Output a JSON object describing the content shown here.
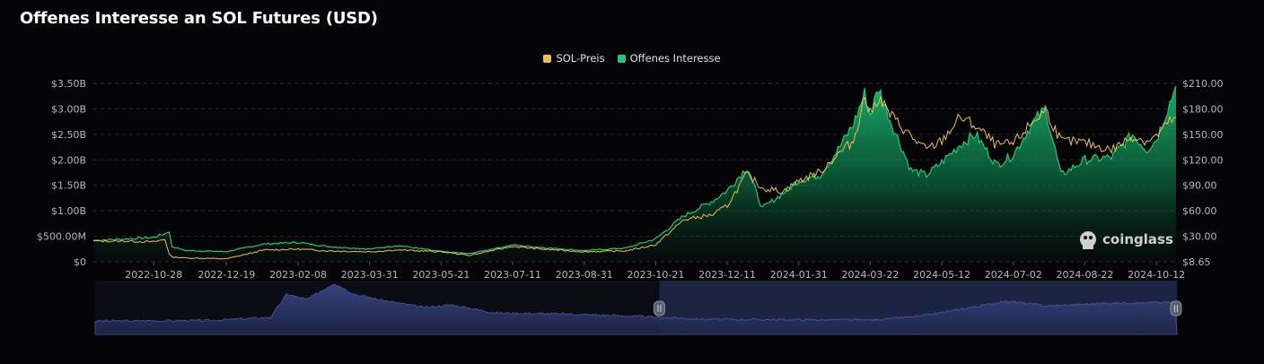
{
  "title": "Offenes Interesse an SOL Futures (USD)",
  "legend": {
    "price_label": "SOL-Preis",
    "oi_label": "Offenes Interesse"
  },
  "watermark": "coinglass",
  "colors": {
    "price": "#f0c04a",
    "oi": "#1ec97a",
    "background": "#050508",
    "navigator": "#2c3768"
  },
  "chart_data": {
    "type": "area",
    "x_label_dates": [
      "2022-10-28",
      "2022-12-19",
      "2023-02-08",
      "2023-03-31",
      "2023-05-21",
      "2023-07-11",
      "2023-08-31",
      "2023-10-21",
      "2023-12-11",
      "2024-01-31",
      "2024-03-22",
      "2024-05-12",
      "2024-07-02",
      "2024-08-22",
      "2024-10-12"
    ],
    "y_left": {
      "ticks": [
        "$0",
        "$500.00M",
        "$1.00B",
        "$1.50B",
        "$2.00B",
        "$2.50B",
        "$3.00B",
        "$3.50B"
      ],
      "range": [
        0,
        3.5
      ],
      "unit": "billion USD"
    },
    "y_right": {
      "ticks": [
        "$8.65",
        "$30.00",
        "$60.00",
        "$90.00",
        "$120.00",
        "$150.00",
        "$180.00",
        "$210.00"
      ],
      "range": [
        8.65,
        210
      ]
    },
    "series": [
      {
        "name": "Offenes Interesse",
        "axis": "left",
        "points": [
          [
            "2022-09-15",
            0.42
          ],
          [
            "2022-10-10",
            0.45
          ],
          [
            "2022-10-28",
            0.48
          ],
          [
            "2022-11-05",
            0.55
          ],
          [
            "2022-11-08",
            0.6
          ],
          [
            "2022-11-10",
            0.3
          ],
          [
            "2022-11-20",
            0.22
          ],
          [
            "2022-12-19",
            0.2
          ],
          [
            "2023-01-15",
            0.35
          ],
          [
            "2023-02-08",
            0.38
          ],
          [
            "2023-03-01",
            0.3
          ],
          [
            "2023-03-31",
            0.25
          ],
          [
            "2023-04-20",
            0.32
          ],
          [
            "2023-05-21",
            0.2
          ],
          [
            "2023-06-10",
            0.16
          ],
          [
            "2023-07-11",
            0.33
          ],
          [
            "2023-08-01",
            0.28
          ],
          [
            "2023-08-31",
            0.22
          ],
          [
            "2023-09-30",
            0.27
          ],
          [
            "2023-10-21",
            0.45
          ],
          [
            "2023-11-10",
            0.9
          ],
          [
            "2023-12-01",
            1.2
          ],
          [
            "2023-12-11",
            1.4
          ],
          [
            "2023-12-25",
            1.85
          ],
          [
            "2024-01-05",
            1.05
          ],
          [
            "2024-01-20",
            1.35
          ],
          [
            "2024-01-31",
            1.6
          ],
          [
            "2024-02-15",
            1.7
          ],
          [
            "2024-02-28",
            2.2
          ],
          [
            "2024-03-10",
            2.7
          ],
          [
            "2024-03-18",
            3.3
          ],
          [
            "2024-03-22",
            2.9
          ],
          [
            "2024-03-28",
            3.4
          ],
          [
            "2024-04-05",
            2.8
          ],
          [
            "2024-04-20",
            1.8
          ],
          [
            "2024-05-01",
            1.7
          ],
          [
            "2024-05-12",
            1.95
          ],
          [
            "2024-05-25",
            2.3
          ],
          [
            "2024-06-05",
            2.5
          ],
          [
            "2024-06-20",
            1.9
          ],
          [
            "2024-07-02",
            2.1
          ],
          [
            "2024-07-15",
            2.7
          ],
          [
            "2024-07-25",
            3.0
          ],
          [
            "2024-08-05",
            1.7
          ],
          [
            "2024-08-22",
            2.0
          ],
          [
            "2024-09-10",
            2.05
          ],
          [
            "2024-09-25",
            2.5
          ],
          [
            "2024-10-05",
            2.2
          ],
          [
            "2024-10-12",
            2.4
          ],
          [
            "2024-10-20",
            3.0
          ],
          [
            "2024-10-26",
            3.45
          ]
        ]
      },
      {
        "name": "SOL-Preis",
        "axis": "right",
        "points": [
          [
            "2022-09-15",
            32
          ],
          [
            "2022-10-10",
            32
          ],
          [
            "2022-10-28",
            31
          ],
          [
            "2022-11-05",
            34
          ],
          [
            "2022-11-08",
            18
          ],
          [
            "2022-11-10",
            14
          ],
          [
            "2022-11-20",
            13
          ],
          [
            "2022-12-19",
            12
          ],
          [
            "2023-01-15",
            22
          ],
          [
            "2023-02-08",
            23
          ],
          [
            "2023-03-01",
            21
          ],
          [
            "2023-03-31",
            20
          ],
          [
            "2023-04-20",
            22
          ],
          [
            "2023-05-21",
            20
          ],
          [
            "2023-06-10",
            16
          ],
          [
            "2023-07-11",
            26
          ],
          [
            "2023-08-01",
            23
          ],
          [
            "2023-08-31",
            20
          ],
          [
            "2023-09-30",
            21
          ],
          [
            "2023-10-21",
            28
          ],
          [
            "2023-11-10",
            56
          ],
          [
            "2023-12-01",
            62
          ],
          [
            "2023-12-11",
            72
          ],
          [
            "2023-12-25",
            108
          ],
          [
            "2024-01-05",
            92
          ],
          [
            "2024-01-20",
            88
          ],
          [
            "2024-01-31",
            100
          ],
          [
            "2024-02-15",
            110
          ],
          [
            "2024-02-28",
            130
          ],
          [
            "2024-03-10",
            145
          ],
          [
            "2024-03-18",
            195
          ],
          [
            "2024-03-22",
            175
          ],
          [
            "2024-03-28",
            195
          ],
          [
            "2024-04-05",
            175
          ],
          [
            "2024-04-20",
            150
          ],
          [
            "2024-05-01",
            135
          ],
          [
            "2024-05-12",
            145
          ],
          [
            "2024-05-25",
            172
          ],
          [
            "2024-06-05",
            162
          ],
          [
            "2024-06-20",
            140
          ],
          [
            "2024-07-02",
            142
          ],
          [
            "2024-07-15",
            165
          ],
          [
            "2024-07-25",
            180
          ],
          [
            "2024-08-05",
            145
          ],
          [
            "2024-08-22",
            143
          ],
          [
            "2024-09-10",
            135
          ],
          [
            "2024-09-25",
            150
          ],
          [
            "2024-10-05",
            145
          ],
          [
            "2024-10-12",
            150
          ],
          [
            "2024-10-20",
            165
          ],
          [
            "2024-10-26",
            172
          ]
        ]
      }
    ],
    "navigator": {
      "selected_range": [
        "2023-10-21",
        "2024-10-26"
      ]
    },
    "grid": true,
    "legend_position": "top-center"
  }
}
